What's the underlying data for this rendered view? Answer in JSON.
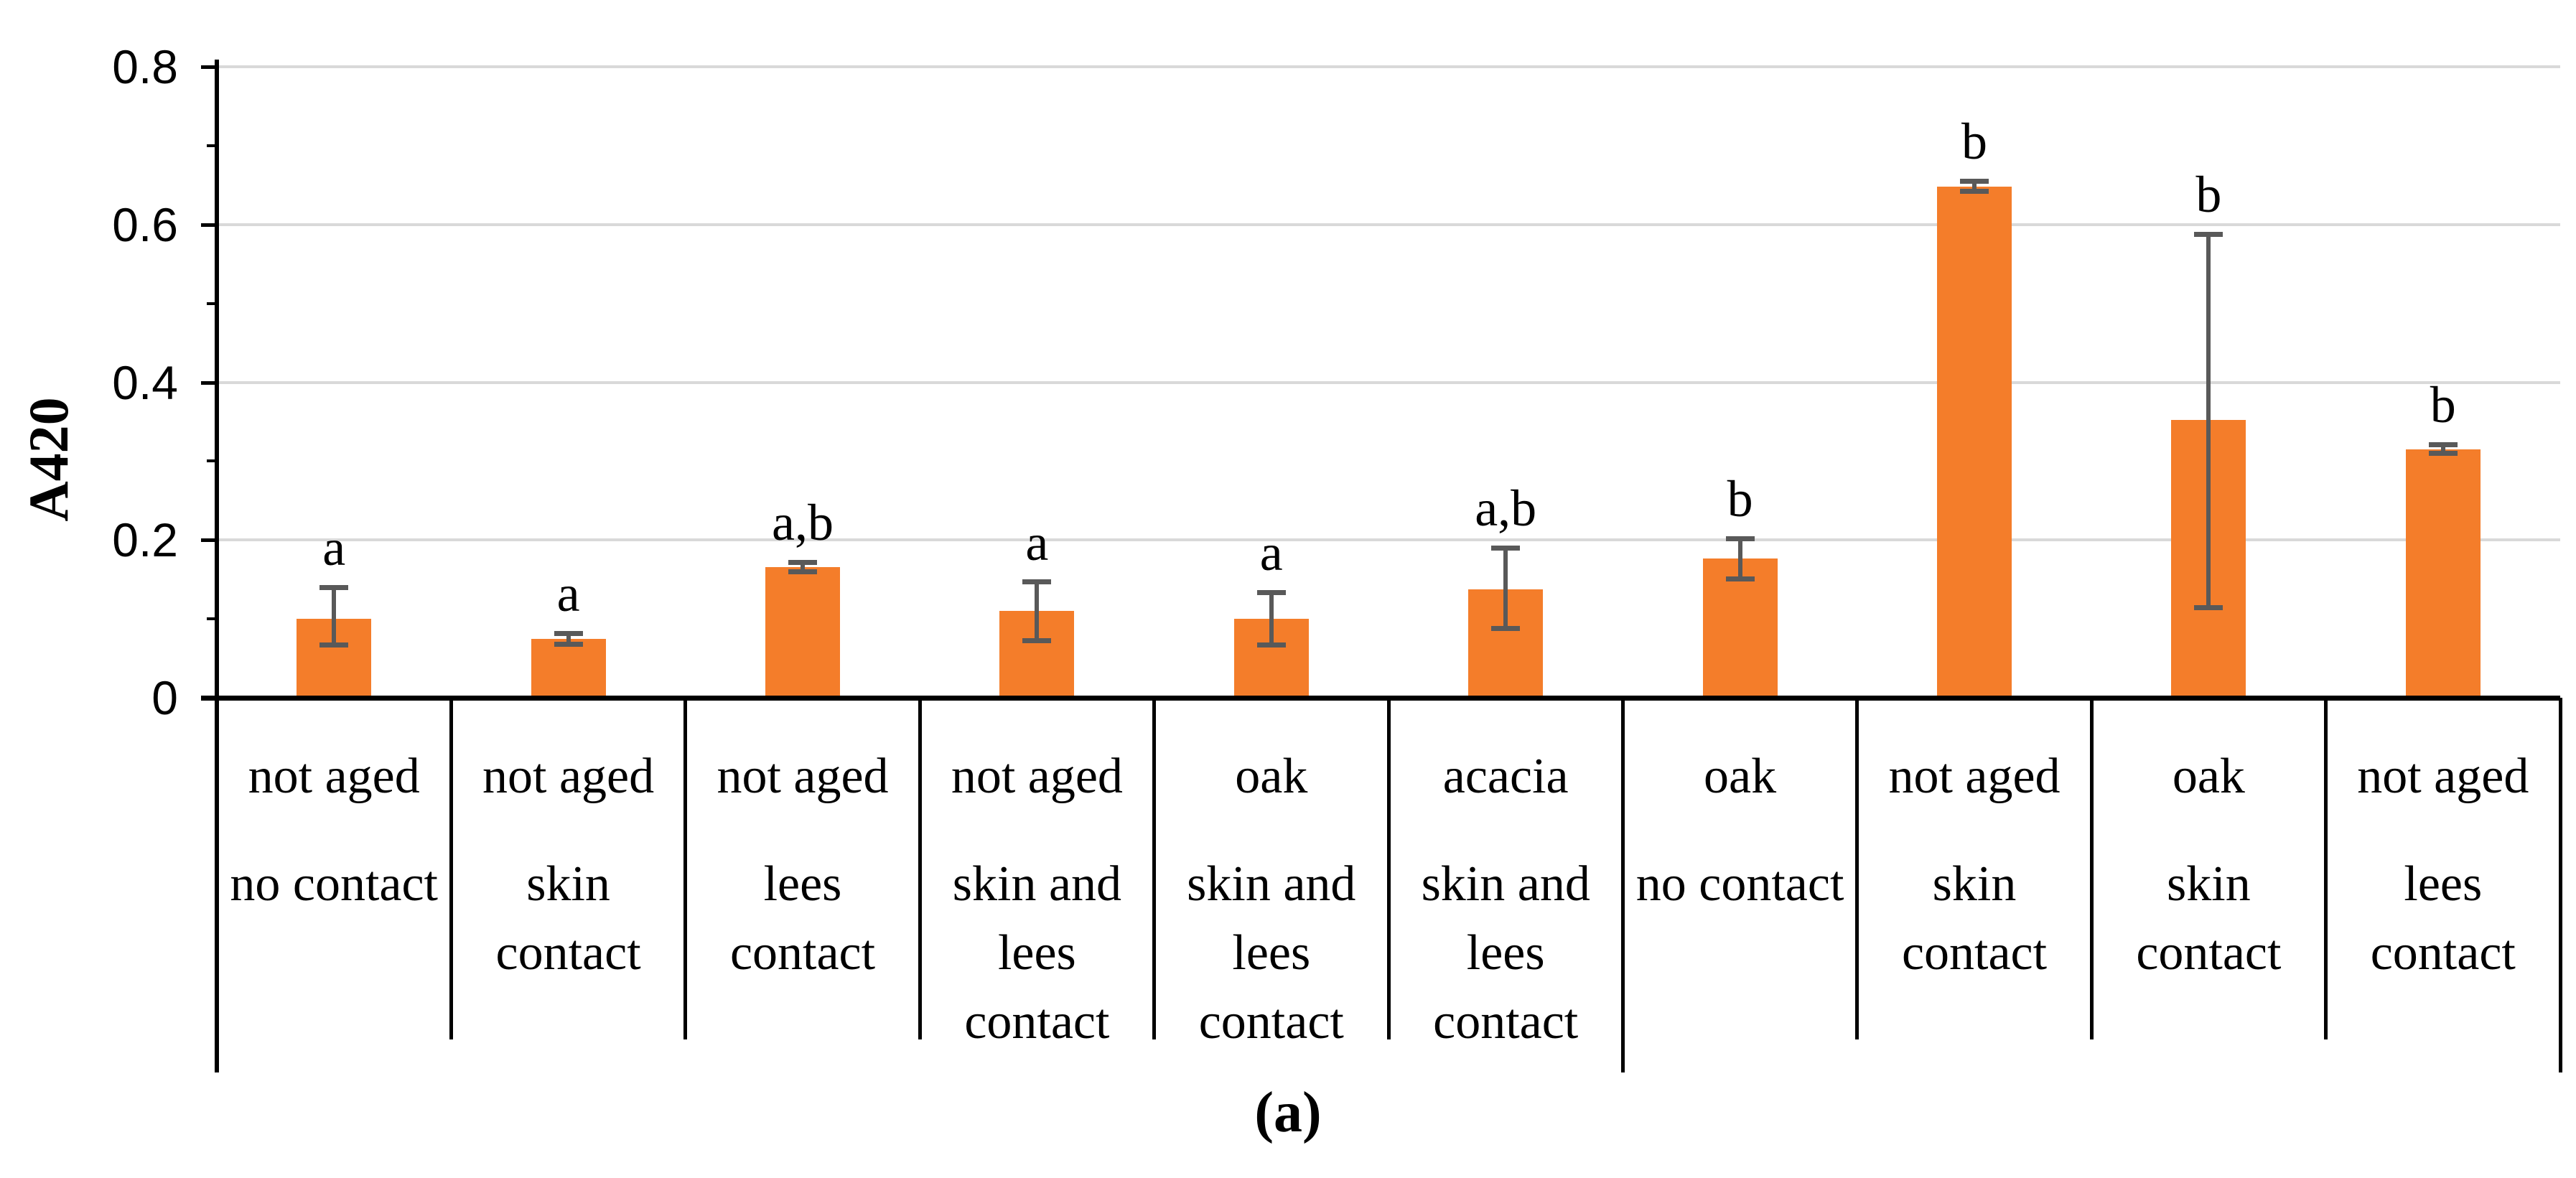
{
  "figure": {
    "caption": "(a)"
  },
  "chart_data": {
    "type": "bar",
    "title": "",
    "xlabel": "",
    "ylabel": "A420",
    "ylim": [
      0,
      0.8
    ],
    "yticks": [
      0,
      0.2,
      0.4,
      0.6,
      0.8
    ],
    "ytick_labels": [
      "0",
      "0.2",
      "0.4",
      "0.6",
      "0.8"
    ],
    "minor_ytick_step": 0.1,
    "grid": true,
    "gridline_color": "#D9D9D9",
    "bar_color": "#F47D2A",
    "error_bar_color": "#595959",
    "axis_color": "#000000",
    "legend": "none",
    "group_separator_after_category": 6,
    "categories": [
      {
        "aging": "not aged",
        "contact_lines": [
          "no contact"
        ],
        "value": 0.1,
        "err_up": 0.04,
        "err_down": 0.033,
        "sig": "a"
      },
      {
        "aging": "not aged",
        "contact_lines": [
          "skin",
          "contact"
        ],
        "value": 0.075,
        "err_up": 0.007,
        "err_down": 0.007,
        "sig": "a"
      },
      {
        "aging": "not aged",
        "contact_lines": [
          "lees",
          "contact"
        ],
        "value": 0.166,
        "err_up": 0.006,
        "err_down": 0.006,
        "sig": "a,b"
      },
      {
        "aging": "not aged",
        "contact_lines": [
          "skin and",
          "lees",
          "contact"
        ],
        "value": 0.11,
        "err_up": 0.037,
        "err_down": 0.037,
        "sig": "a"
      },
      {
        "aging": "oak",
        "contact_lines": [
          "skin and",
          "lees",
          "contact"
        ],
        "value": 0.1,
        "err_up": 0.034,
        "err_down": 0.033,
        "sig": "a"
      },
      {
        "aging": "acacia",
        "contact_lines": [
          "skin and",
          "lees",
          "contact"
        ],
        "value": 0.137,
        "err_up": 0.053,
        "err_down": 0.049,
        "sig": "a,b"
      },
      {
        "aging": "oak",
        "contact_lines": [
          "no contact"
        ],
        "value": 0.177,
        "err_up": 0.025,
        "err_down": 0.026,
        "sig": "b"
      },
      {
        "aging": "not aged",
        "contact_lines": [
          "skin",
          "contact"
        ],
        "value": 0.648,
        "err_up": 0.007,
        "err_down": 0.005,
        "sig": "b"
      },
      {
        "aging": "oak",
        "contact_lines": [
          "skin",
          "contact"
        ],
        "value": 0.352,
        "err_up": 0.236,
        "err_down": 0.237,
        "sig": "b"
      },
      {
        "aging": "not aged",
        "contact_lines": [
          "lees",
          "contact"
        ],
        "value": 0.315,
        "err_up": 0.006,
        "err_down": 0.005,
        "sig": "b"
      }
    ]
  }
}
